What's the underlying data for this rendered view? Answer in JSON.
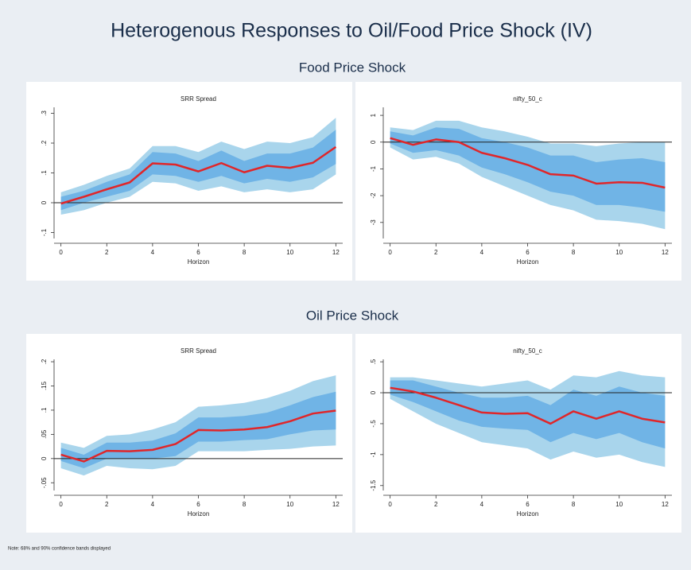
{
  "title": "Heterogenous Responses to Oil/Food Price Shock (IV)",
  "sections": [
    "Food Price Shock",
    "Oil Price Shock"
  ],
  "note": "Note: 68% and 90% confidence bands displayed",
  "chart_data": [
    {
      "type": "line",
      "title": "SRR Spread",
      "xlabel": "Horizon",
      "x": [
        0,
        1,
        2,
        3,
        4,
        5,
        6,
        7,
        8,
        9,
        10,
        11,
        12
      ],
      "xlim": [
        -0.3,
        12.3
      ],
      "xticks": [
        0,
        2,
        4,
        6,
        8,
        10,
        12
      ],
      "ylim": [
        -0.12,
        0.32
      ],
      "yticks": [
        {
          "value": -0.1,
          "label": "-.1"
        },
        0,
        {
          "value": 0.1,
          "label": ".1"
        },
        {
          "value": 0.2,
          "label": ".2"
        },
        {
          "value": 0.3,
          "label": ".3"
        }
      ],
      "hline": 0,
      "bands": [
        {
          "color": "#a9d5ec",
          "lower": [
            -0.04,
            -0.025,
            0.0,
            0.02,
            0.07,
            0.065,
            0.04,
            0.055,
            0.035,
            0.045,
            0.035,
            0.045,
            0.095
          ],
          "upper": [
            0.035,
            0.06,
            0.09,
            0.115,
            0.19,
            0.19,
            0.17,
            0.205,
            0.18,
            0.205,
            0.2,
            0.22,
            0.285
          ]
        },
        {
          "color": "#70b4e6",
          "lower": [
            -0.025,
            0.0,
            0.02,
            0.04,
            0.095,
            0.09,
            0.07,
            0.09,
            0.065,
            0.08,
            0.07,
            0.085,
            0.13
          ],
          "upper": [
            0.02,
            0.04,
            0.07,
            0.095,
            0.17,
            0.165,
            0.14,
            0.175,
            0.14,
            0.165,
            0.165,
            0.185,
            0.245
          ]
        }
      ],
      "series": [
        {
          "color": "#e0262a",
          "values": [
            -0.003,
            0.02,
            0.045,
            0.068,
            0.132,
            0.128,
            0.105,
            0.133,
            0.102,
            0.124,
            0.117,
            0.134,
            0.187
          ]
        }
      ]
    },
    {
      "type": "line",
      "title": "nifty_50_c",
      "xlabel": "Horizon",
      "x": [
        0,
        1,
        2,
        3,
        4,
        5,
        6,
        7,
        8,
        9,
        10,
        11,
        12
      ],
      "xlim": [
        -0.3,
        12.3
      ],
      "xticks": [
        0,
        2,
        4,
        6,
        8,
        10,
        12
      ],
      "ylim": [
        -3.6,
        1.3
      ],
      "yticks": [
        -3,
        -2,
        -1,
        0,
        1
      ],
      "hline": 0,
      "bands": [
        {
          "color": "#a9d5ec",
          "lower": [
            -0.2,
            -0.65,
            -0.55,
            -0.8,
            -1.3,
            -1.65,
            -2.0,
            -2.35,
            -2.55,
            -2.9,
            -2.95,
            -3.05,
            -3.25
          ],
          "upper": [
            0.55,
            0.45,
            0.8,
            0.8,
            0.55,
            0.4,
            0.2,
            -0.05,
            -0.05,
            -0.15,
            -0.05,
            0.0,
            0.0
          ]
        },
        {
          "color": "#70b4e6",
          "lower": [
            -0.05,
            -0.4,
            -0.3,
            -0.5,
            -0.95,
            -1.2,
            -1.5,
            -1.85,
            -2.0,
            -2.35,
            -2.35,
            -2.45,
            -2.6
          ],
          "upper": [
            0.4,
            0.25,
            0.55,
            0.5,
            0.15,
            0.0,
            -0.2,
            -0.5,
            -0.5,
            -0.75,
            -0.65,
            -0.6,
            -0.75
          ]
        }
      ],
      "series": [
        {
          "color": "#e0262a",
          "values": [
            0.15,
            -0.1,
            0.1,
            0.0,
            -0.4,
            -0.6,
            -0.85,
            -1.2,
            -1.25,
            -1.55,
            -1.5,
            -1.52,
            -1.7
          ]
        }
      ]
    },
    {
      "type": "line",
      "title": "SRR Spread",
      "xlabel": "Horizon",
      "x": [
        0,
        1,
        2,
        3,
        4,
        5,
        6,
        7,
        8,
        9,
        10,
        11,
        12
      ],
      "xlim": [
        -0.3,
        12.3
      ],
      "xticks": [
        0,
        2,
        4,
        6,
        8,
        10,
        12
      ],
      "ylim": [
        -0.066,
        0.205
      ],
      "yticks": [
        {
          "value": -0.05,
          "label": "-.05"
        },
        0,
        {
          "value": 0.05,
          "label": ".05"
        },
        {
          "value": 0.1,
          "label": ".1"
        },
        {
          "value": 0.15,
          "label": ".15"
        },
        {
          "value": 0.2,
          "label": ".2"
        }
      ],
      "hline": 0,
      "bands": [
        {
          "color": "#a9d5ec",
          "lower": [
            -0.02,
            -0.035,
            -0.015,
            -0.02,
            -0.022,
            -0.015,
            0.015,
            0.015,
            0.015,
            0.018,
            0.02,
            0.025,
            0.027
          ],
          "upper": [
            0.033,
            0.022,
            0.047,
            0.05,
            0.06,
            0.075,
            0.107,
            0.11,
            0.115,
            0.125,
            0.14,
            0.16,
            0.172
          ]
        },
        {
          "color": "#70b4e6",
          "lower": [
            -0.005,
            -0.02,
            0.0,
            0.0,
            0.0,
            0.005,
            0.035,
            0.035,
            0.038,
            0.04,
            0.05,
            0.058,
            0.06
          ],
          "upper": [
            0.022,
            0.008,
            0.033,
            0.033,
            0.037,
            0.052,
            0.085,
            0.085,
            0.088,
            0.095,
            0.11,
            0.127,
            0.138
          ]
        }
      ],
      "series": [
        {
          "color": "#e0262a",
          "values": [
            0.008,
            -0.006,
            0.016,
            0.015,
            0.018,
            0.03,
            0.059,
            0.058,
            0.06,
            0.065,
            0.077,
            0.093,
            0.099
          ]
        }
      ]
    },
    {
      "type": "line",
      "title": "nifty_50_c",
      "xlabel": "Horizon",
      "x": [
        0,
        1,
        2,
        3,
        4,
        5,
        6,
        7,
        8,
        9,
        10,
        11,
        12
      ],
      "xlim": [
        -0.3,
        12.3
      ],
      "xticks": [
        0,
        2,
        4,
        6,
        8,
        10,
        12
      ],
      "ylim": [
        -1.58,
        0.54
      ],
      "yticks": [
        {
          "value": -1.5,
          "label": "-1.5"
        },
        -1,
        {
          "value": -0.5,
          "label": "-.5"
        },
        0,
        {
          "value": 0.5,
          "label": ".5"
        }
      ],
      "hline": 0,
      "bands": [
        {
          "color": "#a9d5ec",
          "lower": [
            -0.1,
            -0.3,
            -0.5,
            -0.65,
            -0.8,
            -0.85,
            -0.9,
            -1.08,
            -0.95,
            -1.05,
            -1.0,
            -1.12,
            -1.2
          ],
          "upper": [
            0.25,
            0.25,
            0.2,
            0.15,
            0.1,
            0.15,
            0.2,
            0.05,
            0.28,
            0.25,
            0.35,
            0.28,
            0.25
          ]
        },
        {
          "color": "#70b4e6",
          "lower": [
            -0.03,
            -0.15,
            -0.3,
            -0.45,
            -0.55,
            -0.58,
            -0.6,
            -0.8,
            -0.65,
            -0.75,
            -0.65,
            -0.8,
            -0.9
          ],
          "upper": [
            0.2,
            0.2,
            0.1,
            0.0,
            -0.08,
            -0.08,
            -0.05,
            -0.2,
            0.05,
            -0.05,
            0.1,
            0.0,
            -0.05
          ]
        }
      ],
      "series": [
        {
          "color": "#e0262a",
          "values": [
            0.08,
            0.02,
            -0.08,
            -0.2,
            -0.32,
            -0.34,
            -0.33,
            -0.5,
            -0.3,
            -0.42,
            -0.3,
            -0.42,
            -0.48
          ]
        }
      ]
    }
  ]
}
